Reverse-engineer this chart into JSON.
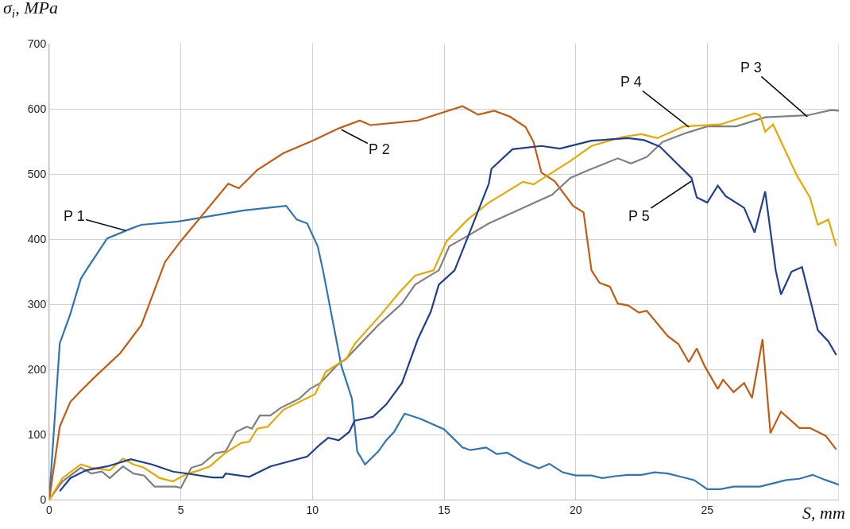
{
  "chart_data": {
    "type": "line",
    "xlabel": "S, mm",
    "ylabel": "σ$_{i}$, MPa",
    "xlim": [
      0,
      30
    ],
    "xticks": [
      0,
      5,
      10,
      15,
      20,
      25,
      {
        "value": 30,
        "label": null
      }
    ],
    "ylim": [
      0,
      700
    ],
    "yticks": [
      0,
      100,
      200,
      300,
      400,
      500,
      600,
      700
    ],
    "grid": true,
    "legend": false,
    "marker": "none",
    "line_style": "solid",
    "annotations": [
      {
        "text": "P 1",
        "x": 2.9,
        "y": 413
      },
      {
        "text": "P 2",
        "x": 11.1,
        "y": 568
      },
      {
        "text": "P 3",
        "x": 28.8,
        "y": 588
      },
      {
        "text": "P 4",
        "x": 24.3,
        "y": 572
      },
      {
        "text": "P 5",
        "x": 24.4,
        "y": 489
      }
    ],
    "series": [
      {
        "color": "#2e75b6",
        "x": [
          0,
          0.4,
          0.8,
          1.2,
          1.4,
          2.2,
          3.1,
          3.5,
          4.9,
          7.4,
          9.0,
          9.4,
          9.8,
          10.2,
          10.4,
          11.1,
          11.5,
          11.7,
          12.0,
          12.5,
          12.8,
          13.1,
          13.5,
          14.1,
          15.0,
          15.7,
          16.0,
          16.6,
          17.0,
          17.4,
          18.0,
          18.6,
          19.0,
          19.5,
          20.0,
          20.6,
          21.0,
          21.5,
          22.0,
          22.5,
          23.0,
          23.5,
          24.0,
          24.5,
          25.0,
          25.5,
          26.0,
          27.0,
          28.0,
          28.5,
          29.0,
          29.5,
          30.0
        ],
        "values": [
          0,
          240,
          285,
          339,
          352,
          401,
          416,
          422,
          427,
          444,
          451,
          430,
          424,
          389,
          352,
          205,
          155,
          74,
          54,
          74,
          91,
          104,
          132,
          124,
          108,
          80,
          76,
          80,
          70,
          72,
          58,
          48,
          55,
          42,
          37,
          37,
          33,
          36,
          38,
          38,
          42,
          40,
          35,
          30,
          16,
          16,
          20,
          20,
          30,
          32,
          38,
          30,
          23
        ]
      },
      {
        "color": "#c55a11",
        "x": [
          0,
          0.4,
          0.8,
          1.2,
          1.7,
          2.7,
          3.5,
          4.4,
          5.0,
          6.8,
          7.2,
          7.6,
          7.9,
          8.9,
          10.0,
          11.0,
          11.8,
          12.2,
          14.0,
          15.7,
          16.3,
          16.9,
          17.5,
          18.1,
          18.4,
          18.7,
          19.2,
          19.9,
          20.3,
          20.6,
          20.9,
          21.3,
          21.6,
          22.0,
          22.4,
          22.7,
          23.5,
          23.9,
          24.3,
          24.6,
          24.9,
          25.4,
          25.6,
          26.0,
          26.4,
          26.7,
          27.1,
          27.4,
          27.8,
          28.5,
          28.9,
          29.5,
          29.9
        ],
        "values": [
          0,
          112,
          150,
          167,
          187,
          225,
          268,
          365,
          397,
          485,
          478,
          494,
          506,
          532,
          551,
          570,
          582,
          575,
          582,
          604,
          591,
          597,
          588,
          572,
          549,
          502,
          489,
          451,
          441,
          352,
          333,
          327,
          301,
          298,
          287,
          290,
          251,
          239,
          211,
          232,
          205,
          170,
          184,
          165,
          179,
          156,
          246,
          102,
          135,
          110,
          110,
          98,
          77
        ]
      },
      {
        "color": "#808080",
        "x": [
          0,
          0.5,
          1.2,
          1.6,
          2.0,
          2.3,
          2.8,
          3.2,
          3.6,
          4.0,
          4.8,
          5.0,
          5.4,
          5.8,
          6.3,
          6.7,
          7.1,
          7.5,
          7.7,
          8.0,
          8.4,
          8.8,
          9.5,
          9.9,
          10.3,
          10.9,
          11.3,
          11.7,
          12.5,
          13.4,
          13.9,
          14.8,
          15.2,
          15.9,
          16.7,
          18.0,
          19.1,
          19.8,
          20.5,
          21.6,
          22.1,
          22.7,
          23.3,
          24.2,
          25.0,
          26.1,
          27.2,
          28.8,
          29.7,
          30.0
        ],
        "values": [
          0,
          28,
          49,
          40,
          43,
          33,
          51,
          40,
          37,
          20,
          20,
          18,
          49,
          54,
          71,
          74,
          104,
          112,
          109,
          129,
          129,
          141,
          155,
          170,
          179,
          205,
          217,
          234,
          268,
          301,
          330,
          352,
          389,
          405,
          424,
          448,
          468,
          494,
          506,
          524,
          516,
          526,
          549,
          563,
          573,
          573,
          587,
          590,
          598,
          597
        ]
      },
      {
        "color": "#e8a800",
        "x": [
          0,
          0.5,
          1.2,
          1.6,
          2.3,
          2.8,
          3.2,
          3.6,
          4.2,
          4.7,
          5.2,
          5.7,
          6.1,
          6.7,
          7.3,
          7.6,
          7.9,
          8.3,
          8.9,
          10.1,
          10.5,
          11.3,
          11.6,
          12.6,
          13.3,
          13.9,
          14.6,
          15.1,
          15.9,
          16.7,
          18.0,
          18.4,
          19.8,
          20.6,
          21.8,
          22.5,
          23.1,
          24.1,
          25.5,
          26.8,
          27.0,
          27.2,
          27.5,
          28.4,
          28.9,
          29.2,
          29.6,
          29.9
        ],
        "values": [
          0,
          33,
          54,
          49,
          45,
          63,
          54,
          49,
          33,
          28,
          39,
          45,
          51,
          72,
          87,
          89,
          109,
          112,
          138,
          162,
          196,
          217,
          239,
          284,
          318,
          344,
          352,
          397,
          430,
          456,
          488,
          484,
          520,
          543,
          557,
          561,
          555,
          573,
          576,
          593,
          590,
          565,
          576,
          498,
          464,
          422,
          430,
          389
        ]
      },
      {
        "color": "#1f3f8f",
        "x": [
          0.4,
          0.8,
          1.4,
          2.2,
          3.1,
          3.9,
          4.7,
          5.4,
          6.2,
          6.6,
          6.7,
          7.6,
          8.4,
          9.8,
          10.3,
          10.6,
          11.0,
          11.4,
          11.6,
          12.3,
          12.8,
          13.4,
          14.0,
          14.5,
          14.8,
          15.4,
          16.0,
          16.7,
          16.8,
          17.6,
          18.7,
          19.4,
          20.6,
          22.0,
          22.6,
          23.2,
          24.4,
          24.6,
          25.0,
          25.4,
          25.7,
          26.4,
          26.8,
          27.2,
          27.6,
          27.8,
          28.2,
          28.6,
          29.2,
          29.6,
          29.9
        ],
        "values": [
          13,
          33,
          45,
          51,
          62,
          54,
          43,
          39,
          34,
          34,
          40,
          35,
          51,
          66,
          85,
          95,
          91,
          104,
          121,
          127,
          146,
          179,
          246,
          289,
          330,
          352,
          413,
          485,
          508,
          538,
          543,
          539,
          551,
          555,
          552,
          542,
          494,
          464,
          456,
          482,
          466,
          448,
          410,
          473,
          352,
          315,
          350,
          357,
          260,
          243,
          222
        ]
      }
    ]
  }
}
